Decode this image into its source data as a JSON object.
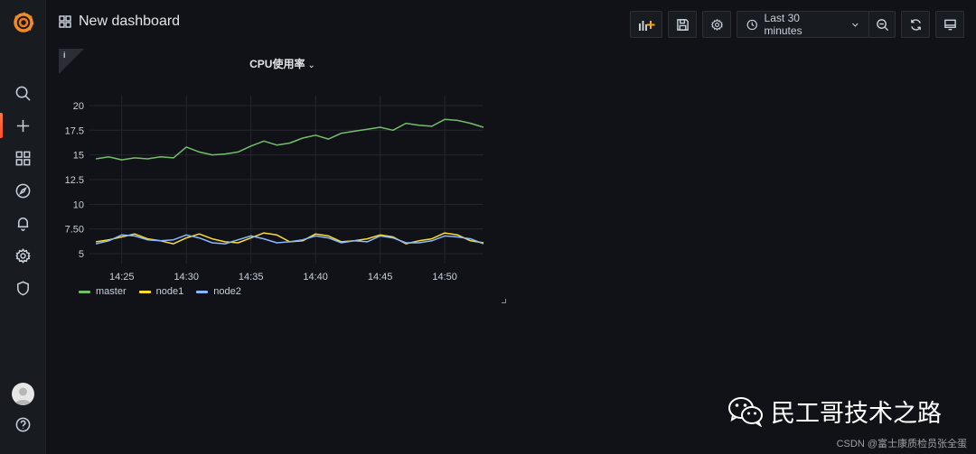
{
  "app": {
    "name": "Grafana"
  },
  "sidebar": {
    "items": [
      {
        "icon": "search-icon"
      },
      {
        "icon": "plus-icon"
      },
      {
        "icon": "dashboards-icon"
      },
      {
        "icon": "explore-compass-icon"
      },
      {
        "icon": "alerting-bell-icon"
      },
      {
        "icon": "configuration-gear-icon"
      },
      {
        "icon": "server-admin-shield-icon"
      }
    ],
    "bottom": [
      {
        "icon": "user-avatar"
      },
      {
        "icon": "help-icon"
      }
    ]
  },
  "header": {
    "title": "New dashboard",
    "time_range": "Last 30 minutes"
  },
  "panel": {
    "title": "CPU使用率",
    "chev": "⌄",
    "info": "i"
  },
  "chart_data": {
    "type": "line",
    "title": "CPU使用率",
    "x_ticks": [
      "14:25",
      "14:30",
      "14:35",
      "14:40",
      "14:45",
      "14:50"
    ],
    "y_ticks": [
      "5",
      "7.50",
      "10",
      "12.5",
      "15",
      "17.5",
      "20"
    ],
    "ylim": [
      4,
      21
    ],
    "x_range": [
      "14:22:30",
      "14:53:00"
    ],
    "grid": true,
    "legend_position": "bottom-left",
    "series": [
      {
        "name": "master",
        "color": "#73bf69",
        "x": [
          "14:23",
          "14:24",
          "14:25",
          "14:26",
          "14:27",
          "14:28",
          "14:29",
          "14:30",
          "14:31",
          "14:32",
          "14:33",
          "14:34",
          "14:35",
          "14:36",
          "14:37",
          "14:38",
          "14:39",
          "14:40",
          "14:41",
          "14:42",
          "14:43",
          "14:44",
          "14:45",
          "14:46",
          "14:47",
          "14:48",
          "14:49",
          "14:50",
          "14:51",
          "14:52",
          "14:53"
        ],
        "values": [
          14.6,
          14.8,
          14.5,
          14.7,
          14.6,
          14.8,
          14.7,
          15.8,
          15.3,
          15.0,
          15.1,
          15.3,
          15.9,
          16.4,
          16.0,
          16.2,
          16.7,
          17.0,
          16.6,
          17.2,
          17.4,
          17.6,
          17.8,
          17.5,
          18.2,
          18.0,
          17.9,
          18.6,
          18.5,
          18.2,
          17.8
        ]
      },
      {
        "name": "node1",
        "color": "#fade2a",
        "x": [
          "14:23",
          "14:24",
          "14:25",
          "14:26",
          "14:27",
          "14:28",
          "14:29",
          "14:30",
          "14:31",
          "14:32",
          "14:33",
          "14:34",
          "14:35",
          "14:36",
          "14:37",
          "14:38",
          "14:39",
          "14:40",
          "14:41",
          "14:42",
          "14:43",
          "14:44",
          "14:45",
          "14:46",
          "14:47",
          "14:48",
          "14:49",
          "14:50",
          "14:51",
          "14:52",
          "14:53"
        ],
        "values": [
          6.2,
          6.4,
          6.7,
          7.0,
          6.5,
          6.3,
          6.0,
          6.6,
          7.0,
          6.5,
          6.2,
          6.1,
          6.6,
          7.1,
          6.9,
          6.2,
          6.3,
          7.0,
          6.8,
          6.2,
          6.3,
          6.5,
          6.9,
          6.7,
          6.0,
          6.3,
          6.5,
          7.1,
          6.9,
          6.3,
          6.1
        ]
      },
      {
        "name": "node2",
        "color": "#8ab8ff",
        "x": [
          "14:23",
          "14:24",
          "14:25",
          "14:26",
          "14:27",
          "14:28",
          "14:29",
          "14:30",
          "14:31",
          "14:32",
          "14:33",
          "14:34",
          "14:35",
          "14:36",
          "14:37",
          "14:38",
          "14:39",
          "14:40",
          "14:41",
          "14:42",
          "14:43",
          "14:44",
          "14:45",
          "14:46",
          "14:47",
          "14:48",
          "14:49",
          "14:50",
          "14:51",
          "14:52",
          "14:53"
        ],
        "values": [
          6.0,
          6.3,
          6.9,
          6.8,
          6.4,
          6.3,
          6.4,
          6.9,
          6.6,
          6.1,
          6.0,
          6.4,
          6.8,
          6.5,
          6.1,
          6.2,
          6.4,
          6.8,
          6.6,
          6.1,
          6.3,
          6.2,
          6.8,
          6.6,
          6.1,
          6.1,
          6.3,
          6.8,
          6.7,
          6.5,
          6.0
        ]
      }
    ]
  },
  "watermark": {
    "text": "民工哥技术之路",
    "sub": "CSDN @富士康质检员张全蛋"
  }
}
